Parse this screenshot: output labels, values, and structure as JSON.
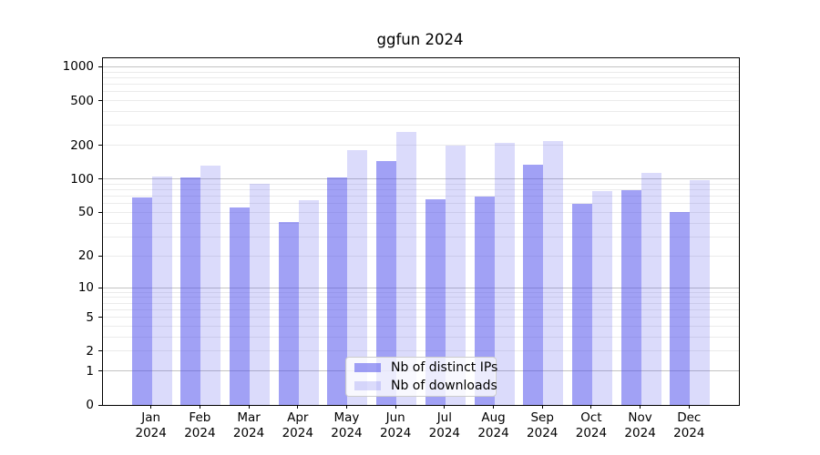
{
  "title": "ggfun 2024",
  "chart_data": {
    "type": "bar",
    "title": "ggfun 2024",
    "categories": [
      "Jan 2024",
      "Feb 2024",
      "Mar 2024",
      "Apr 2024",
      "May 2024",
      "Jun 2024",
      "Jul 2024",
      "Aug 2024",
      "Sep 2024",
      "Oct 2024",
      "Nov 2024",
      "Dec 2024"
    ],
    "x_tick_months": [
      "Jan",
      "Feb",
      "Mar",
      "Apr",
      "May",
      "Jun",
      "Jul",
      "Aug",
      "Sep",
      "Oct",
      "Nov",
      "Dec"
    ],
    "x_tick_year": "2024",
    "series": [
      {
        "name": "Nb of distinct IPs",
        "color": "rgba(75,75,235,0.52)",
        "values": [
          68,
          103,
          56,
          41,
          104,
          145,
          66,
          70,
          134,
          60,
          80,
          50
        ]
      },
      {
        "name": "Nb of downloads",
        "color": "rgba(75,75,235,0.20)",
        "values": [
          105,
          132,
          91,
          64,
          181,
          262,
          198,
          210,
          218,
          78,
          113,
          97
        ]
      }
    ],
    "yscale": "log1p",
    "ylim": [
      0,
      1190
    ],
    "y_ticks": [
      1000,
      500,
      200,
      100,
      50,
      20,
      10,
      5,
      2,
      1,
      0
    ],
    "grid_major": [
      1,
      10,
      100,
      1000
    ],
    "grid_minor": [
      2,
      3,
      4,
      5,
      6,
      7,
      8,
      9,
      20,
      30,
      40,
      50,
      60,
      70,
      80,
      90,
      200,
      300,
      400,
      500,
      600,
      700,
      800,
      900
    ],
    "legend_position": "lower center",
    "grid": "on"
  },
  "colors": {
    "grid_major": "#c3c3c3",
    "grid_minor": "#ebebeb",
    "axis": "#000000",
    "ips_bar_hex": "#a2a2f2",
    "downloads_bar_hex": "#dadafa"
  }
}
